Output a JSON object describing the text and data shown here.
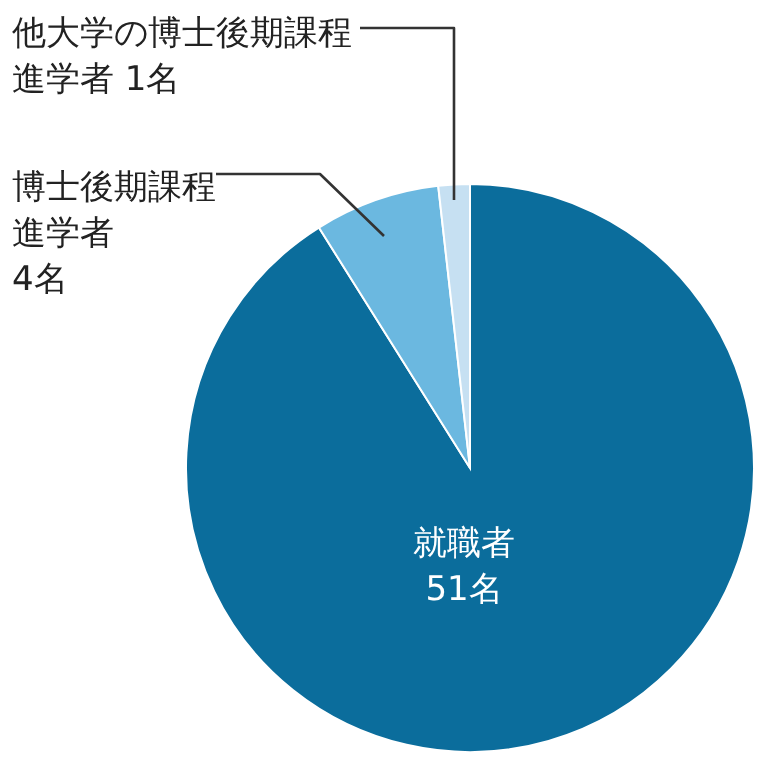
{
  "chart_data": {
    "type": "pie",
    "categories": [
      "就職者",
      "博士後期課程進学者",
      "他大学の博士後期課程進学者"
    ],
    "values": [
      51,
      4,
      1
    ],
    "value_labels": [
      "51名",
      "4名",
      "1名"
    ],
    "colors": [
      "#0b6d9c",
      "#6bb8e0",
      "#c6e0f2"
    ]
  }
}
